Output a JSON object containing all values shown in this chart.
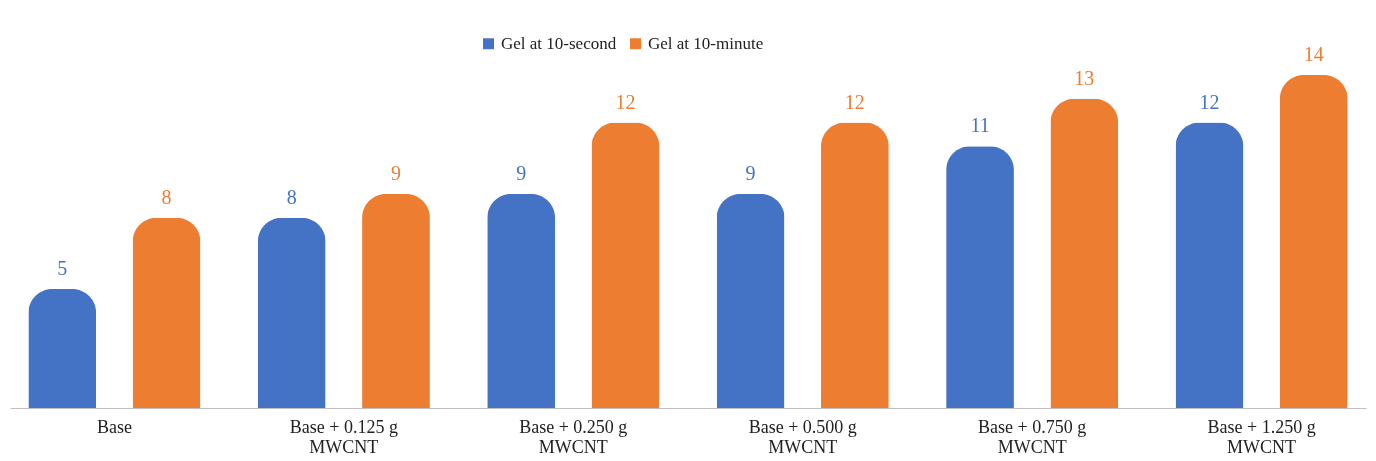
{
  "chart_data": {
    "type": "bar",
    "categories": [
      "Base",
      "Base + 0.125 g\nMWCNT",
      "Base  + 0.250 g\nMWCNT",
      "Base + 0.500 g\nMWCNT",
      "Base  + 0.750 g\nMWCNT",
      "Base  + 1.250 g\nMWCNT"
    ],
    "series": [
      {
        "name": "Gel at 10-second",
        "color": "#4472c4",
        "values": [
          5,
          8,
          9,
          9,
          11,
          12
        ]
      },
      {
        "name": "Gel at 10-minute",
        "color": "#ed7d31",
        "values": [
          8,
          9,
          12,
          12,
          13,
          14
        ]
      }
    ],
    "data_labels": true,
    "legend": "top",
    "grid": false
  }
}
